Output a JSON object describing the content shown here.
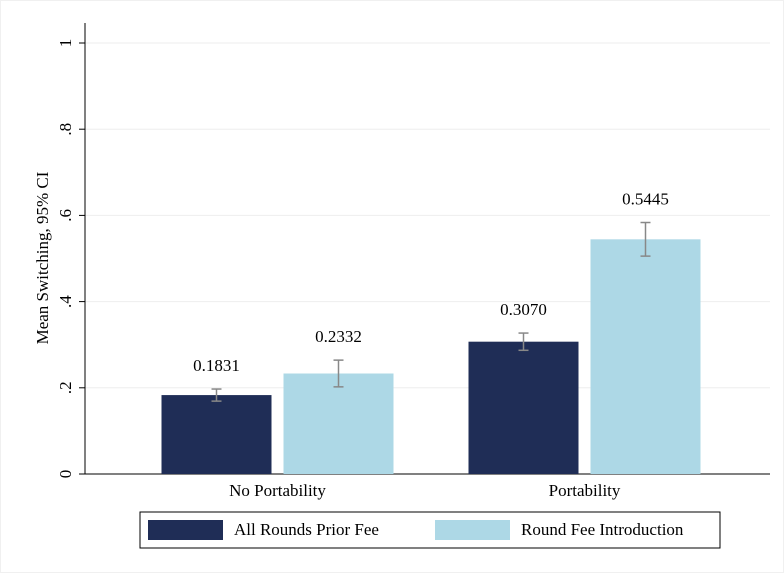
{
  "chart_data": {
    "type": "bar",
    "y_label": "Mean Switching, 95% CI",
    "categories": [
      "No Portability",
      "Portability"
    ],
    "series": [
      {
        "name": "All Rounds Prior Fee",
        "color": "#1f2d56",
        "values": [
          0.1831,
          0.307
        ],
        "value_labels": [
          "0.1831",
          "0.3070"
        ],
        "errors": [
          0.014,
          0.02
        ]
      },
      {
        "name": "Round Fee Introduction",
        "color": "#add8e6",
        "values": [
          0.2332,
          0.5445
        ],
        "value_labels": [
          "0.2332",
          "0.5445"
        ],
        "errors": [
          0.031,
          0.039
        ]
      }
    ],
    "ylim": [
      0,
      1
    ],
    "yticks": [
      0,
      {
        "value": 0.2,
        "label": ".2"
      },
      {
        "value": 0.4,
        "label": ".4"
      },
      {
        "value": 0.6,
        "label": ".6"
      },
      {
        "value": 0.8,
        "label": ".8"
      },
      1
    ],
    "grid": true,
    "legend": "bottom"
  }
}
